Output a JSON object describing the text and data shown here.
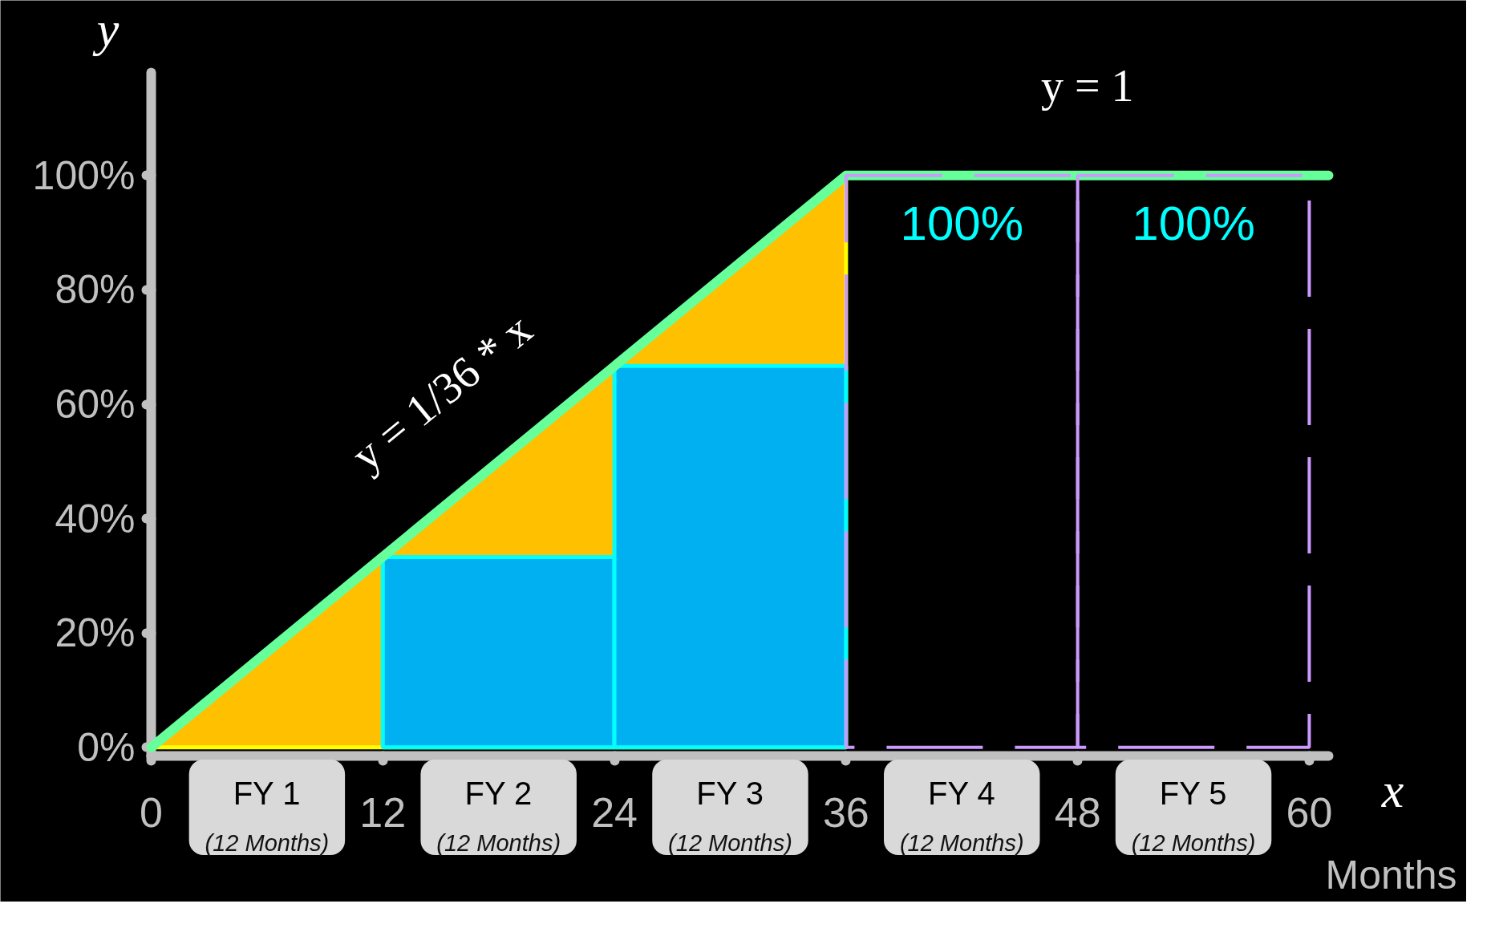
{
  "chart_data": {
    "type": "line",
    "xlabel": "x",
    "ylabel": "y",
    "xlim": [
      0,
      61
    ],
    "ylim": [
      -1.5,
      118
    ],
    "xticks": [
      0,
      12,
      24,
      36,
      48,
      60
    ],
    "yticks": [
      {
        "value": 0,
        "label": "0%"
      },
      {
        "value": 20,
        "label": "20%"
      },
      {
        "value": 40,
        "label": "40%"
      },
      {
        "value": 60,
        "label": "60%"
      },
      {
        "value": 80,
        "label": "80%"
      },
      {
        "value": 100,
        "label": "100%"
      }
    ],
    "series": [
      {
        "type": "area",
        "x": [
          0,
          36
        ],
        "values": [
          0,
          100
        ],
        "color": "#ffc000"
      },
      {
        "type": "bar",
        "x": [
          18,
          30
        ],
        "values": [
          33.3,
          66.7
        ],
        "color": "#00b0f0"
      },
      {
        "x": [
          0,
          36,
          61
        ],
        "values": [
          0,
          100,
          100
        ],
        "color": "#66ff99"
      },
      {
        "type": "bar",
        "x": [
          42,
          54
        ],
        "values": [
          100,
          100
        ],
        "color": "#cc99ff",
        "line_style": "dashed",
        "value_labels": [
          "100%",
          "100%"
        ]
      }
    ],
    "annotations": [
      "y = 1/36 * x",
      "y = 1",
      "FY 1\n(12 Months)",
      "FY 2\n(12 Months)",
      "FY 3\n(12 Months)",
      "FY 4\n(12 Months)",
      "FY 5\n(12 Months)",
      "Months"
    ]
  }
}
